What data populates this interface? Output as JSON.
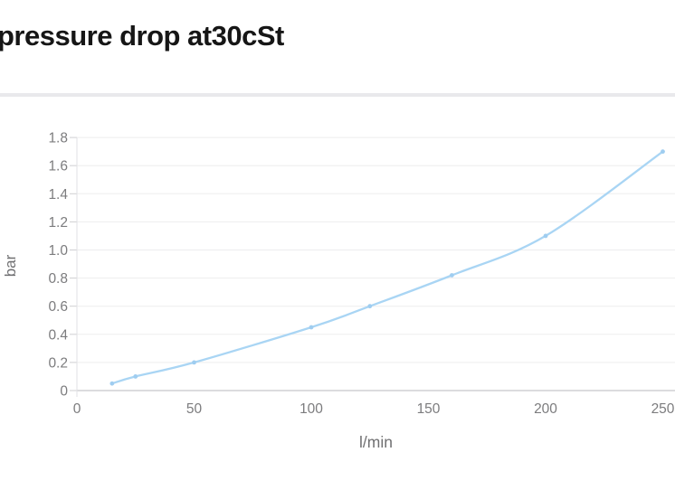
{
  "page": {
    "title": "pressure drop at30cSt"
  },
  "chart_data": {
    "type": "line",
    "title": "pressure drop at30cSt",
    "xlabel": "l/min",
    "ylabel": "bar",
    "series": [
      {
        "name": "pressure drop",
        "x": [
          15,
          25,
          50,
          100,
          125,
          160,
          200,
          250
        ],
        "y": [
          0.05,
          0.1,
          0.2,
          0.45,
          0.6,
          0.82,
          1.1,
          1.7
        ]
      }
    ],
    "xlim": [
      0,
      250
    ],
    "ylim": [
      0,
      1.8
    ],
    "x_ticks": [
      0,
      50,
      100,
      150,
      200,
      250
    ],
    "y_ticks": [
      0,
      0.2,
      0.4,
      0.6,
      0.8,
      1.0,
      1.2,
      1.4,
      1.6,
      1.8
    ],
    "grid": "horizontal-only",
    "legend": "none",
    "marker": "circle"
  },
  "colors": {
    "title_text": "#161616",
    "divider": "#e9e9ec",
    "line": "#a9d5f4",
    "marker": "#9fcdf0",
    "gridline": "#ededee",
    "axis_line": "#b9b9bc",
    "tick_mark": "#cfcfd2",
    "tick_label_text": "#7c7c7e",
    "axis_title_text": "#707072"
  }
}
